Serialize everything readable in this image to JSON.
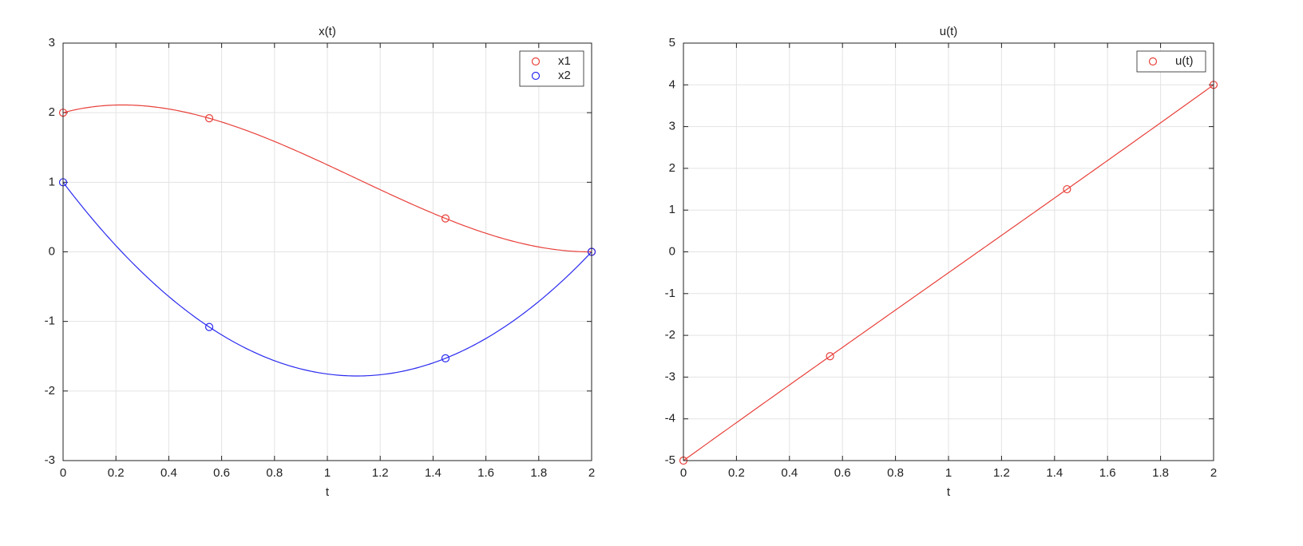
{
  "chart_data": [
    {
      "type": "line",
      "title": "x(t)",
      "xlabel": "t",
      "xlim": [
        0,
        2
      ],
      "ylim": [
        -3,
        3
      ],
      "xticks": [
        0,
        0.2,
        0.4,
        0.6,
        0.8,
        1,
        1.2,
        1.4,
        1.6,
        1.8,
        2
      ],
      "yticks": [
        -3,
        -2,
        -1,
        0,
        1,
        2,
        3
      ],
      "grid": true,
      "legend": "upper right",
      "series": [
        {
          "name": "x1",
          "color": "#e8403a",
          "x": [
            0,
            0.553,
            1.447,
            2
          ],
          "values": [
            2,
            1.92,
            0.48,
            0
          ]
        },
        {
          "name": "x2",
          "color": "#2a2af0",
          "x": [
            0,
            0.553,
            1.447,
            2
          ],
          "values": [
            1,
            -1.08,
            -1.53,
            0
          ]
        }
      ]
    },
    {
      "type": "line",
      "title": "u(t)",
      "xlabel": "t",
      "xlim": [
        0,
        2
      ],
      "ylim": [
        -5,
        5
      ],
      "xticks": [
        0,
        0.2,
        0.4,
        0.6,
        0.8,
        1,
        1.2,
        1.4,
        1.6,
        1.8,
        2
      ],
      "yticks": [
        -5,
        -4,
        -3,
        -2,
        -1,
        0,
        1,
        2,
        3,
        4,
        5
      ],
      "grid": true,
      "legend": "upper right",
      "series": [
        {
          "name": "u(t)",
          "color": "#e8403a",
          "x": [
            0,
            0.553,
            1.447,
            2
          ],
          "values": [
            -5,
            -2.5,
            1.5,
            4
          ]
        }
      ]
    }
  ]
}
